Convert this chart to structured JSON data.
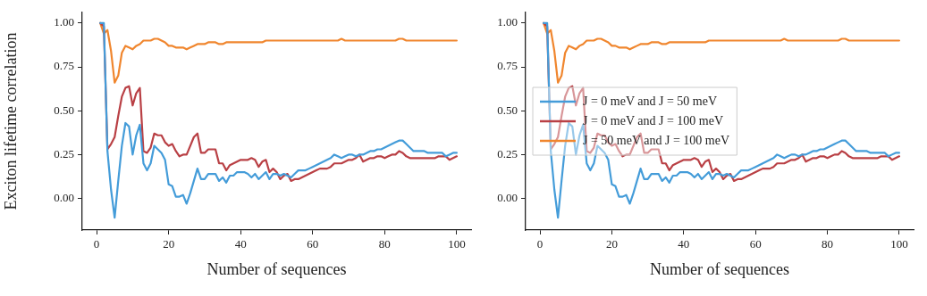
{
  "chart_data": [
    {
      "type": "line",
      "xlabel": "Number of sequences",
      "ylabel": "Exciton lifetime correlation",
      "x": [
        1,
        2,
        3,
        4,
        5,
        6,
        7,
        8,
        9,
        10,
        11,
        12,
        13,
        14,
        15,
        16,
        17,
        18,
        19,
        20,
        21,
        22,
        23,
        24,
        25,
        26,
        27,
        28,
        29,
        30,
        31,
        32,
        33,
        34,
        35,
        36,
        37,
        38,
        39,
        40,
        41,
        42,
        43,
        44,
        45,
        46,
        47,
        48,
        49,
        50,
        51,
        52,
        53,
        54,
        55,
        56,
        57,
        58,
        59,
        60,
        61,
        62,
        63,
        64,
        65,
        66,
        67,
        68,
        69,
        70,
        71,
        72,
        73,
        74,
        75,
        76,
        77,
        78,
        79,
        80,
        81,
        82,
        83,
        84,
        85,
        86,
        87,
        88,
        89,
        90,
        91,
        92,
        93,
        94,
        95,
        96,
        97,
        98,
        99,
        100
      ],
      "series": [
        {
          "color": "#449cd9",
          "values": [
            1.0,
            1.0,
            0.27,
            0.05,
            -0.11,
            0.1,
            0.3,
            0.43,
            0.41,
            0.25,
            0.36,
            0.42,
            0.2,
            0.16,
            0.2,
            0.3,
            0.28,
            0.26,
            0.22,
            0.08,
            0.07,
            0.01,
            0.01,
            0.02,
            -0.03,
            0.03,
            0.1,
            0.17,
            0.11,
            0.11,
            0.14,
            0.14,
            0.14,
            0.1,
            0.12,
            0.09,
            0.13,
            0.13,
            0.15,
            0.15,
            0.15,
            0.14,
            0.12,
            0.14,
            0.11,
            0.13,
            0.15,
            0.11,
            0.14,
            0.14,
            0.13,
            0.14,
            0.13,
            0.12,
            0.14,
            0.16,
            0.16,
            0.16,
            0.17,
            0.18,
            0.19,
            0.2,
            0.21,
            0.22,
            0.23,
            0.25,
            0.24,
            0.23,
            0.24,
            0.25,
            0.25,
            0.24,
            0.25,
            0.25,
            0.26,
            0.27,
            0.27,
            0.28,
            0.28,
            0.29,
            0.3,
            0.31,
            0.32,
            0.33,
            0.33,
            0.31,
            0.29,
            0.27,
            0.27,
            0.27,
            0.27,
            0.26,
            0.26,
            0.26,
            0.26,
            0.26,
            0.24,
            0.25,
            0.26,
            0.26
          ]
        },
        {
          "color": "#b94045",
          "values": [
            1.0,
            0.98,
            0.28,
            0.31,
            0.35,
            0.47,
            0.58,
            0.63,
            0.64,
            0.53,
            0.6,
            0.63,
            0.27,
            0.26,
            0.29,
            0.37,
            0.36,
            0.36,
            0.32,
            0.3,
            0.31,
            0.27,
            0.24,
            0.25,
            0.25,
            0.3,
            0.35,
            0.37,
            0.26,
            0.26,
            0.28,
            0.28,
            0.28,
            0.2,
            0.2,
            0.16,
            0.19,
            0.2,
            0.21,
            0.22,
            0.22,
            0.22,
            0.23,
            0.22,
            0.18,
            0.21,
            0.22,
            0.15,
            0.17,
            0.15,
            0.11,
            0.13,
            0.14,
            0.1,
            0.11,
            0.11,
            0.12,
            0.13,
            0.14,
            0.15,
            0.16,
            0.17,
            0.17,
            0.17,
            0.18,
            0.2,
            0.2,
            0.2,
            0.21,
            0.22,
            0.22,
            0.23,
            0.25,
            0.21,
            0.22,
            0.23,
            0.23,
            0.24,
            0.24,
            0.23,
            0.24,
            0.25,
            0.25,
            0.27,
            0.26,
            0.24,
            0.23,
            0.23,
            0.23,
            0.23,
            0.23,
            0.23,
            0.23,
            0.23,
            0.24,
            0.24,
            0.24,
            0.22,
            0.23,
            0.24
          ]
        },
        {
          "color": "#f0862e",
          "values": [
            1.0,
            0.94,
            0.96,
            0.84,
            0.66,
            0.7,
            0.83,
            0.87,
            0.86,
            0.85,
            0.87,
            0.88,
            0.9,
            0.9,
            0.9,
            0.91,
            0.91,
            0.9,
            0.89,
            0.87,
            0.87,
            0.86,
            0.86,
            0.86,
            0.85,
            0.86,
            0.87,
            0.88,
            0.88,
            0.88,
            0.89,
            0.89,
            0.89,
            0.88,
            0.88,
            0.89,
            0.89,
            0.89,
            0.89,
            0.89,
            0.89,
            0.89,
            0.89,
            0.89,
            0.89,
            0.89,
            0.9,
            0.9,
            0.9,
            0.9,
            0.9,
            0.9,
            0.9,
            0.9,
            0.9,
            0.9,
            0.9,
            0.9,
            0.9,
            0.9,
            0.9,
            0.9,
            0.9,
            0.9,
            0.9,
            0.9,
            0.9,
            0.91,
            0.9,
            0.9,
            0.9,
            0.9,
            0.9,
            0.9,
            0.9,
            0.9,
            0.9,
            0.9,
            0.9,
            0.9,
            0.9,
            0.9,
            0.9,
            0.91,
            0.91,
            0.9,
            0.9,
            0.9,
            0.9,
            0.9,
            0.9,
            0.9,
            0.9,
            0.9,
            0.9,
            0.9,
            0.9,
            0.9,
            0.9,
            0.9
          ]
        }
      ],
      "xlim": [
        -4,
        104
      ],
      "xticks": [
        0,
        20,
        40,
        60,
        80,
        100
      ],
      "ylim": [
        -0.18,
        1.06
      ],
      "yticks": [
        {
          "value": 0,
          "label": "0.00"
        },
        {
          "value": 0.25,
          "label": "0.25"
        },
        {
          "value": 0.5,
          "label": "0.50"
        },
        {
          "value": 0.75,
          "label": "0.75"
        },
        {
          "value": 1,
          "label": "1.00"
        }
      ],
      "grid": false,
      "marker": "none",
      "line_style": "solid"
    },
    {
      "type": "line",
      "xlabel": "Number of sequences",
      "x": [
        1,
        2,
        3,
        4,
        5,
        6,
        7,
        8,
        9,
        10,
        11,
        12,
        13,
        14,
        15,
        16,
        17,
        18,
        19,
        20,
        21,
        22,
        23,
        24,
        25,
        26,
        27,
        28,
        29,
        30,
        31,
        32,
        33,
        34,
        35,
        36,
        37,
        38,
        39,
        40,
        41,
        42,
        43,
        44,
        45,
        46,
        47,
        48,
        49,
        50,
        51,
        52,
        53,
        54,
        55,
        56,
        57,
        58,
        59,
        60,
        61,
        62,
        63,
        64,
        65,
        66,
        67,
        68,
        69,
        70,
        71,
        72,
        73,
        74,
        75,
        76,
        77,
        78,
        79,
        80,
        81,
        82,
        83,
        84,
        85,
        86,
        87,
        88,
        89,
        90,
        91,
        92,
        93,
        94,
        95,
        96,
        97,
        98,
        99,
        100
      ],
      "series": [
        {
          "name": "J = 0 meV and J = 50 meV",
          "color": "#449cd9",
          "values": [
            1.0,
            1.0,
            0.27,
            0.05,
            -0.11,
            0.1,
            0.3,
            0.43,
            0.41,
            0.25,
            0.36,
            0.42,
            0.2,
            0.16,
            0.2,
            0.3,
            0.28,
            0.26,
            0.22,
            0.08,
            0.07,
            0.01,
            0.01,
            0.02,
            -0.03,
            0.03,
            0.1,
            0.17,
            0.11,
            0.11,
            0.14,
            0.14,
            0.14,
            0.1,
            0.12,
            0.09,
            0.13,
            0.13,
            0.15,
            0.15,
            0.15,
            0.14,
            0.12,
            0.14,
            0.11,
            0.13,
            0.15,
            0.11,
            0.14,
            0.14,
            0.13,
            0.14,
            0.13,
            0.12,
            0.14,
            0.16,
            0.16,
            0.16,
            0.17,
            0.18,
            0.19,
            0.2,
            0.21,
            0.22,
            0.23,
            0.25,
            0.24,
            0.23,
            0.24,
            0.25,
            0.25,
            0.24,
            0.25,
            0.25,
            0.26,
            0.27,
            0.27,
            0.28,
            0.28,
            0.29,
            0.3,
            0.31,
            0.32,
            0.33,
            0.33,
            0.31,
            0.29,
            0.27,
            0.27,
            0.27,
            0.27,
            0.26,
            0.26,
            0.26,
            0.26,
            0.26,
            0.24,
            0.25,
            0.26,
            0.26
          ]
        },
        {
          "name": "J = 0 meV and J = 100 meV",
          "color": "#b94045",
          "values": [
            1.0,
            0.98,
            0.28,
            0.31,
            0.35,
            0.47,
            0.58,
            0.63,
            0.64,
            0.53,
            0.6,
            0.63,
            0.27,
            0.26,
            0.29,
            0.37,
            0.36,
            0.36,
            0.32,
            0.3,
            0.31,
            0.27,
            0.24,
            0.25,
            0.25,
            0.3,
            0.35,
            0.37,
            0.26,
            0.26,
            0.28,
            0.28,
            0.28,
            0.2,
            0.2,
            0.16,
            0.19,
            0.2,
            0.21,
            0.22,
            0.22,
            0.22,
            0.23,
            0.22,
            0.18,
            0.21,
            0.22,
            0.15,
            0.17,
            0.15,
            0.11,
            0.13,
            0.14,
            0.1,
            0.11,
            0.11,
            0.12,
            0.13,
            0.14,
            0.15,
            0.16,
            0.17,
            0.17,
            0.17,
            0.18,
            0.2,
            0.2,
            0.2,
            0.21,
            0.22,
            0.22,
            0.23,
            0.25,
            0.21,
            0.22,
            0.23,
            0.23,
            0.24,
            0.24,
            0.23,
            0.24,
            0.25,
            0.25,
            0.27,
            0.26,
            0.24,
            0.23,
            0.23,
            0.23,
            0.23,
            0.23,
            0.23,
            0.23,
            0.23,
            0.24,
            0.24,
            0.24,
            0.22,
            0.23,
            0.24
          ]
        },
        {
          "name": "J = 50 meV and J = 100 meV",
          "color": "#f0862e",
          "values": [
            1.0,
            0.94,
            0.96,
            0.84,
            0.66,
            0.7,
            0.83,
            0.87,
            0.86,
            0.85,
            0.87,
            0.88,
            0.9,
            0.9,
            0.9,
            0.91,
            0.91,
            0.9,
            0.89,
            0.87,
            0.87,
            0.86,
            0.86,
            0.86,
            0.85,
            0.86,
            0.87,
            0.88,
            0.88,
            0.88,
            0.89,
            0.89,
            0.89,
            0.88,
            0.88,
            0.89,
            0.89,
            0.89,
            0.89,
            0.89,
            0.89,
            0.89,
            0.89,
            0.89,
            0.89,
            0.89,
            0.9,
            0.9,
            0.9,
            0.9,
            0.9,
            0.9,
            0.9,
            0.9,
            0.9,
            0.9,
            0.9,
            0.9,
            0.9,
            0.9,
            0.9,
            0.9,
            0.9,
            0.9,
            0.9,
            0.9,
            0.9,
            0.91,
            0.9,
            0.9,
            0.9,
            0.9,
            0.9,
            0.9,
            0.9,
            0.9,
            0.9,
            0.9,
            0.9,
            0.9,
            0.9,
            0.9,
            0.9,
            0.91,
            0.91,
            0.9,
            0.9,
            0.9,
            0.9,
            0.9,
            0.9,
            0.9,
            0.9,
            0.9,
            0.9,
            0.9,
            0.9,
            0.9,
            0.9,
            0.9
          ]
        }
      ],
      "xlim": [
        -4,
        104
      ],
      "xticks": [
        0,
        20,
        40,
        60,
        80,
        100
      ],
      "ylim": [
        -0.18,
        1.06
      ],
      "yticks": [
        {
          "value": 0,
          "label": "0.00"
        },
        {
          "value": 0.25,
          "label": "0.25"
        },
        {
          "value": 0.5,
          "label": "0.50"
        },
        {
          "value": 0.75,
          "label": "0.75"
        },
        {
          "value": 1,
          "label": "1.00"
        }
      ],
      "grid": false,
      "legend": "center left",
      "marker": "none",
      "line_style": "solid"
    }
  ]
}
